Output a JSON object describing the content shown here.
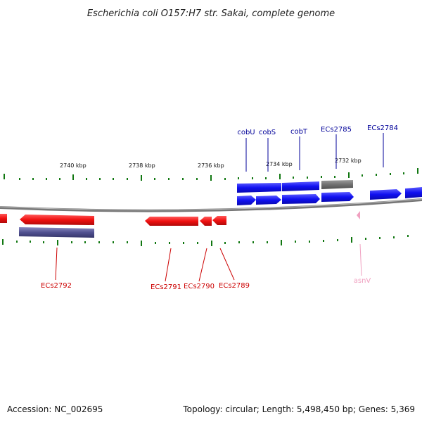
{
  "title": "Escherichia coli O157:H7 str. Sakai, complete genome",
  "footer": {
    "accession": "Accession: NC_002695",
    "stats": "Topology: circular; Length: 5,498,450 bp; Genes: 5,369"
  },
  "scale_labels": [
    "2740 kbp",
    "2738 kbp",
    "2736 kbp",
    "2734 kbp",
    "2732 kbp"
  ],
  "genes_top": [
    "cobU",
    "cobS",
    "cobT",
    "ECs2785",
    "ECs2784"
  ],
  "genes_bottom": [
    "ECs2792",
    "ECs2791",
    "ECs2790",
    "ECs2789",
    "asnV"
  ],
  "colors": {
    "forward_cds": "#1010f0",
    "reverse_cds": "#f01010",
    "pseudo_gene": "#707070",
    "reverse_gene_block": "#505090",
    "trna": "#f0a0c0",
    "tick": "#117711",
    "backbone": "#777777",
    "forward_label": "#000099",
    "reverse_label": "#cc0000"
  }
}
